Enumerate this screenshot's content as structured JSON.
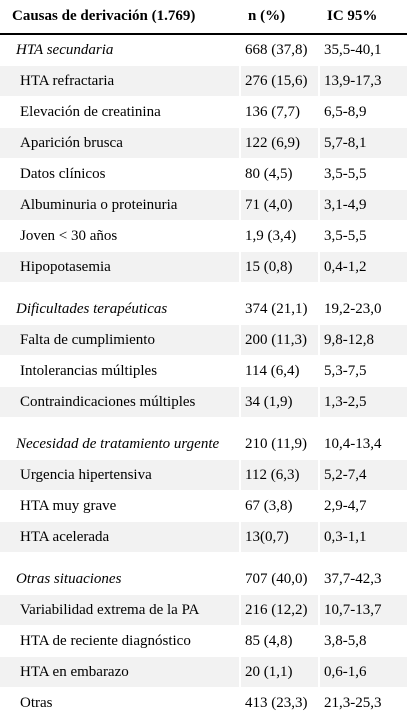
{
  "table": {
    "headers": [
      "Causas de derivación (1.769)",
      "n (%)",
      "IC 95%"
    ],
    "sections": [
      {
        "title": [
          "HTA secundaria",
          "668 (37,8)",
          "35,5-40,1"
        ],
        "rows": [
          [
            "HTA refractaria",
            "276 (15,6)",
            "13,9-17,3"
          ],
          [
            "Elevación de creatinina",
            "136 (7,7)",
            "6,5-8,9"
          ],
          [
            "Aparición brusca",
            "122 (6,9)",
            "5,7-8,1"
          ],
          [
            "Datos clínicos",
            "80 (4,5)",
            "3,5-5,5"
          ],
          [
            "Albuminuria o proteinuria",
            "71 (4,0)",
            "3,1-4,9"
          ],
          [
            "Joven < 30 años",
            "1,9 (3,4)",
            "3,5-5,5"
          ],
          [
            "Hipopotasemia",
            "15 (0,8)",
            "0,4-1,2"
          ]
        ]
      },
      {
        "title": [
          "Dificultades terapéuticas",
          "374 (21,1)",
          "19,2-23,0"
        ],
        "rows": [
          [
            "Falta de cumplimiento",
            "200 (11,3)",
            "9,8-12,8"
          ],
          [
            "Intolerancias múltiples",
            "114 (6,4)",
            "5,3-7,5"
          ],
          [
            "Contraindicaciones múltiples",
            "34 (1,9)",
            "1,3-2,5"
          ]
        ]
      },
      {
        "title": [
          "Necesidad de tratamiento urgente",
          "210 (11,9)",
          "10,4-13,4"
        ],
        "rows": [
          [
            "Urgencia hipertensiva",
            "112 (6,3)",
            "5,2-7,4"
          ],
          [
            "HTA muy grave",
            "67 (3,8)",
            "2,9-4,7"
          ],
          [
            "HTA acelerada",
            "13(0,7)",
            "0,3-1,1"
          ]
        ]
      },
      {
        "title": [
          "Otras situaciones",
          "707 (40,0)",
          "37,7-42,3"
        ],
        "rows": [
          [
            "Variabilidad extrema de la PA",
            "216 (12,2)",
            "10,7-13,7"
          ],
          [
            "HTA de reciente diagnóstico",
            "85 (4,8)",
            "3,8-5,8"
          ],
          [
            "HTA en embarazo",
            "20 (1,1)",
            "0,6-1,6"
          ],
          [
            "Otras",
            "413 (23,3)",
            "21,3-25,3"
          ]
        ]
      }
    ]
  }
}
